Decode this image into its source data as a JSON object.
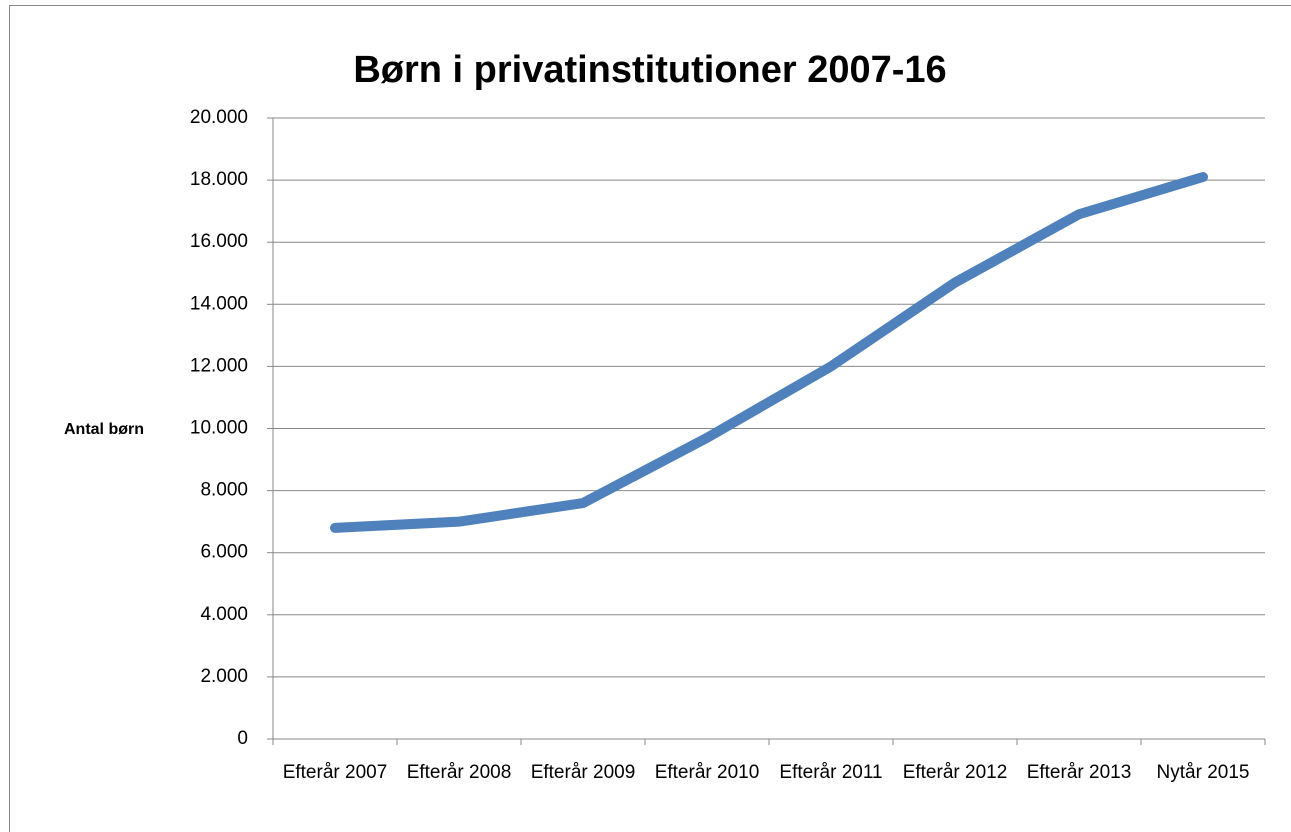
{
  "chart_data": {
    "type": "line",
    "title": "Børn i privatinstitutioner 2007-16",
    "y_label": "Antal børn",
    "categories": [
      "Efterår 2007",
      "Efterår 2008",
      "Efterår 2009",
      "Efterår 2010",
      "Efterår 2011",
      "Efterår 2012",
      "Efterår 2013",
      "Nytår 2015"
    ],
    "series": [
      {
        "name": "Antal børn",
        "color": "#4f81bd",
        "values": [
          6800,
          7000,
          7600,
          9700,
          12000,
          14700,
          16900,
          18100
        ]
      }
    ],
    "ylim": [
      0,
      20000
    ],
    "yticks": [
      0,
      {
        "value": 2000,
        "label": "2.000"
      },
      {
        "value": 4000,
        "label": "4.000"
      },
      {
        "value": 6000,
        "label": "6.000"
      },
      {
        "value": 8000,
        "label": "8.000"
      },
      {
        "value": 10000,
        "label": "10.000"
      },
      {
        "value": 12000,
        "label": "12.000"
      },
      {
        "value": 14000,
        "label": "14.000"
      },
      {
        "value": 16000,
        "label": "16.000"
      },
      {
        "value": 18000,
        "label": "18.000"
      },
      {
        "value": 20000,
        "label": "20.000"
      }
    ],
    "grid": true
  }
}
